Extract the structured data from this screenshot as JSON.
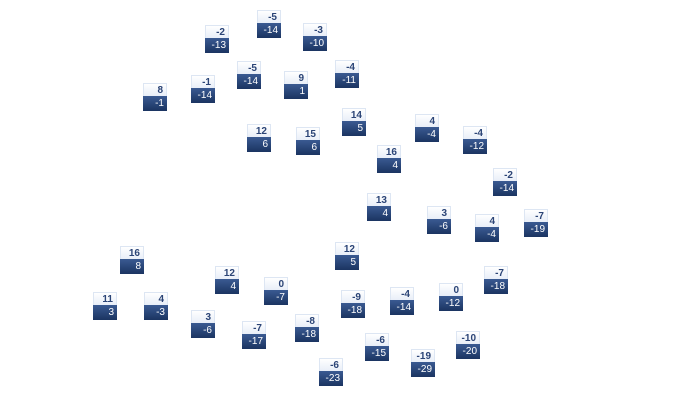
{
  "nodes": [
    {
      "top": "-5",
      "bottom": "-14"
    },
    {
      "top": "-2",
      "bottom": "-13"
    },
    {
      "top": "-3",
      "bottom": "-10"
    },
    {
      "top": "-1",
      "bottom": "-14"
    },
    {
      "top": "-5",
      "bottom": "-14"
    },
    {
      "top": "9",
      "bottom": "1"
    },
    {
      "top": "-4",
      "bottom": "-11"
    },
    {
      "top": "8",
      "bottom": "-1"
    },
    {
      "top": "12",
      "bottom": "6"
    },
    {
      "top": "15",
      "bottom": "6"
    },
    {
      "top": "14",
      "bottom": "5"
    },
    {
      "top": "16",
      "bottom": "4"
    },
    {
      "top": "4",
      "bottom": "-4"
    },
    {
      "top": "-4",
      "bottom": "-12"
    },
    {
      "top": "-2",
      "bottom": "-14"
    },
    {
      "top": "13",
      "bottom": "4"
    },
    {
      "top": "3",
      "bottom": "-6"
    },
    {
      "top": "4",
      "bottom": "-4"
    },
    {
      "top": "-7",
      "bottom": "-19"
    },
    {
      "top": "16",
      "bottom": "8"
    },
    {
      "top": "12",
      "bottom": "5"
    },
    {
      "top": "12",
      "bottom": "4"
    },
    {
      "top": "0",
      "bottom": "-7"
    },
    {
      "top": "11",
      "bottom": "3"
    },
    {
      "top": "4",
      "bottom": "-3"
    },
    {
      "top": "3",
      "bottom": "-6"
    },
    {
      "top": "-7",
      "bottom": "-17"
    },
    {
      "top": "-8",
      "bottom": "-18"
    },
    {
      "top": "-9",
      "bottom": "-18"
    },
    {
      "top": "-4",
      "bottom": "-14"
    },
    {
      "top": "0",
      "bottom": "-12"
    },
    {
      "top": "-7",
      "bottom": "-18"
    },
    {
      "top": "-6",
      "bottom": "-15"
    },
    {
      "top": "-10",
      "bottom": "-20"
    },
    {
      "top": "-19",
      "bottom": "-29"
    },
    {
      "top": "-6",
      "bottom": "-23"
    }
  ]
}
